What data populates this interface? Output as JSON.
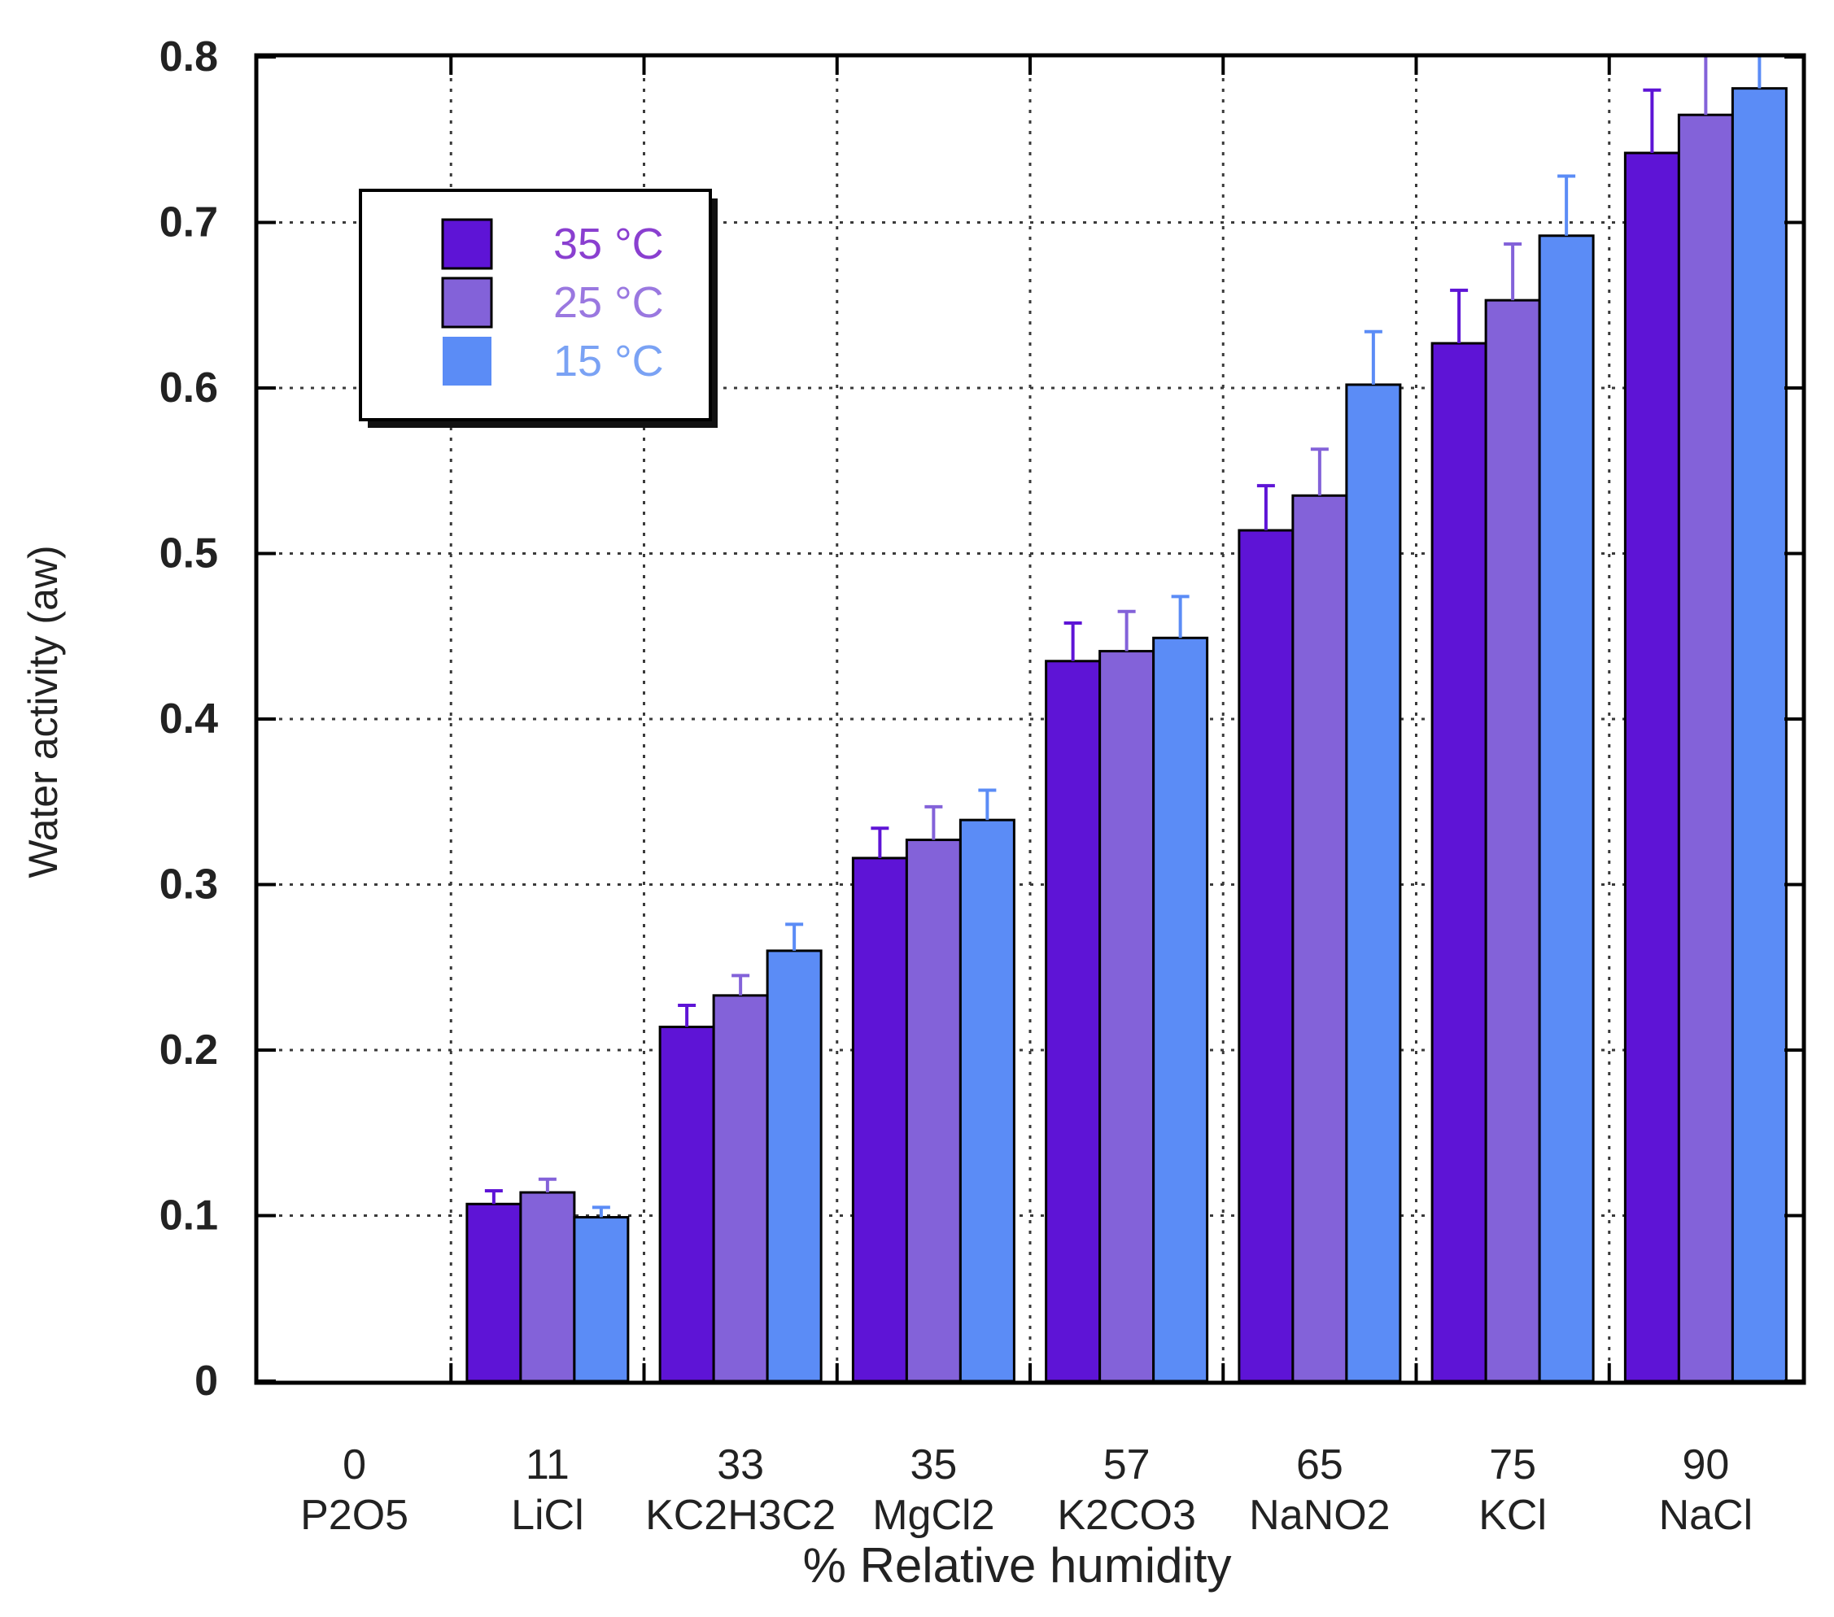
{
  "chart_data": {
    "type": "bar",
    "title": "",
    "xlabel": "% Relative humidity",
    "ylabel": "Water activity (aw)",
    "ylim": [
      0,
      0.8
    ],
    "yticks": [
      "0",
      "0.1",
      "0.2",
      "0.3",
      "0.4",
      "0.5",
      "0.6",
      "0.7",
      "0.8"
    ],
    "grid": true,
    "legend_position": "top-left",
    "categories": [
      {
        "rh": "0",
        "salt": "P2O5"
      },
      {
        "rh": "11",
        "salt": "LiCl"
      },
      {
        "rh": "33",
        "salt": "KC2H3C2"
      },
      {
        "rh": "35",
        "salt": "MgCl2"
      },
      {
        "rh": "57",
        "salt": "K2CO3"
      },
      {
        "rh": "65",
        "salt": "NaNO2"
      },
      {
        "rh": "75",
        "salt": "KCl"
      },
      {
        "rh": "90",
        "salt": "NaCl"
      }
    ],
    "series": [
      {
        "name": "35 °C",
        "color": "#5e14d6",
        "label_color": "#8a3fd0",
        "values": [
          0,
          0.107,
          0.214,
          0.316,
          0.435,
          0.514,
          0.627,
          0.742
        ],
        "errors": [
          0,
          0.008,
          0.013,
          0.018,
          0.023,
          0.027,
          0.032,
          0.038
        ]
      },
      {
        "name": "25 °C",
        "color": "#8362d9",
        "label_color": "#9a78e0",
        "values": [
          0,
          0.114,
          0.233,
          0.327,
          0.441,
          0.535,
          0.653,
          0.765
        ],
        "errors": [
          0,
          0.008,
          0.012,
          0.02,
          0.024,
          0.028,
          0.034,
          0.04
        ]
      },
      {
        "name": "15 °C",
        "color": "#5b8cf6",
        "label_color": "#7aa2f4",
        "values": [
          0,
          0.099,
          0.26,
          0.339,
          0.449,
          0.602,
          0.692,
          0.781
        ],
        "errors": [
          0,
          0.006,
          0.016,
          0.018,
          0.025,
          0.032,
          0.036,
          0.035
        ]
      }
    ]
  }
}
